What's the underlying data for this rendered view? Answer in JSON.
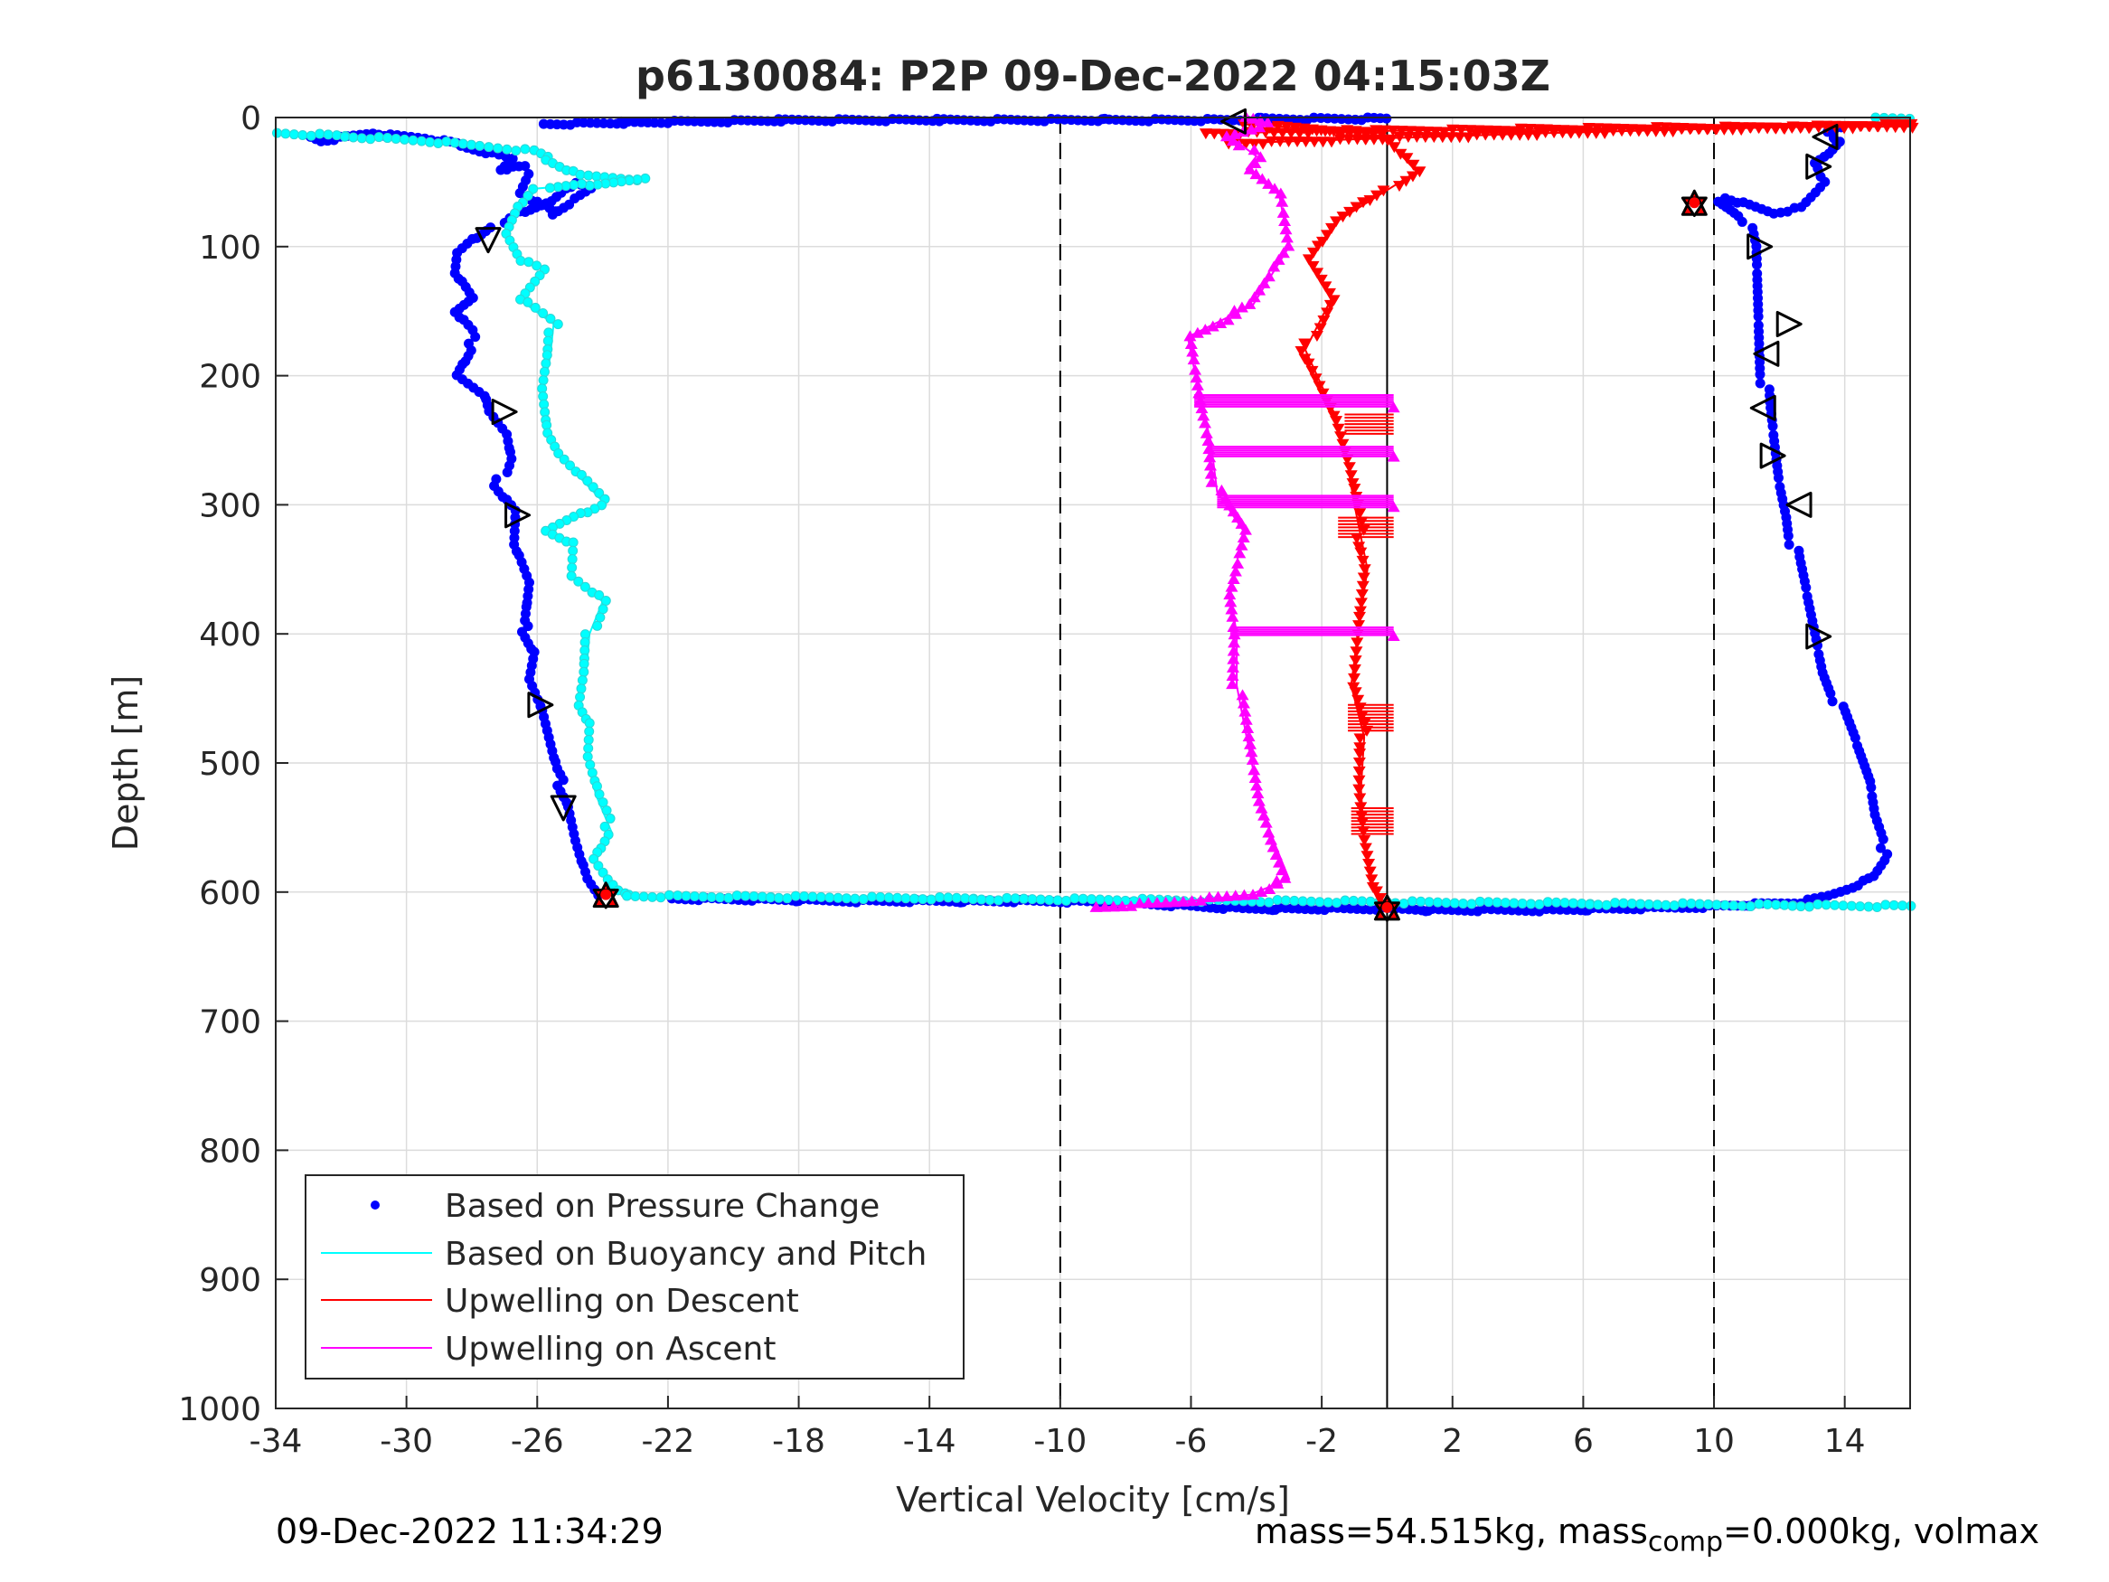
{
  "colors": {
    "pressure": "#0000ff",
    "buoyancy": "#00ffff",
    "descent": "#ff0000",
    "ascent": "#ff00ff",
    "marker_edge": "#000000",
    "marker_fill": "#ff0000"
  },
  "footer": {
    "timestamp": "09-Dec-2022 11:34:29",
    "mass_prefix": "mass=54.515kg, mass",
    "mass_sub": "comp",
    "mass_suffix": "=0.000kg, volmax"
  },
  "chart_data": {
    "type": "line",
    "title": "p6130084: P2P 09-Dec-2022 04:15:03Z",
    "xlabel": "Vertical Velocity [cm/s]",
    "ylabel": "Depth [m]",
    "xlim": [
      -34,
      16
    ],
    "ylim": [
      0,
      1000
    ],
    "y_reversed": true,
    "grid": true,
    "xticks": [
      -34,
      -30,
      -26,
      -22,
      -18,
      -14,
      -10,
      -6,
      -2,
      2,
      6,
      10,
      14
    ],
    "xtick_labels": [
      "-34",
      "-30",
      "-26",
      "-22",
      "-18",
      "-14",
      "-10",
      "-6",
      "-2",
      "2",
      "6",
      "10",
      "14"
    ],
    "yticks": [
      0,
      100,
      200,
      300,
      400,
      500,
      600,
      700,
      800,
      900,
      1000
    ],
    "ytick_labels": [
      "0",
      "100",
      "200",
      "300",
      "400",
      "500",
      "600",
      "700",
      "800",
      "900",
      "1000"
    ],
    "vlines_dashed": [
      -10,
      10
    ],
    "vline_solid": 0,
    "legend": {
      "position": "bottom-left",
      "entries": [
        "Based on Pressure Change",
        "Based on Buoyancy and Pitch",
        "Upwelling on Descent",
        "Upwelling on Ascent"
      ]
    },
    "series": [
      {
        "name": "Based on Pressure Change",
        "style": "dots",
        "segments": [
          {
            "x": [
              -32.8,
              -32.5,
              -31,
              -30.5,
              -29.5,
              -28.2,
              -27.3,
              -26.7,
              -27.1,
              -26.4,
              -26.3,
              -26.6,
              -26.1,
              -25.4,
              -24.3,
              -24.8,
              -25.6,
              -26.8,
              -27.3,
              -27.9,
              -28.4,
              -28.5,
              -28.0,
              -28.6,
              -28.1,
              -27.9,
              -28.4,
              -27.6,
              -27.5,
              -27.0,
              -26.9,
              -27.2,
              -26.6,
              -26.7,
              -26.3,
              -26.5,
              -26.0,
              -26.2,
              -25.9,
              -25.7,
              -25.5,
              -25.0,
              -24.8,
              -24.5,
              -24.2
            ],
            "y": [
              15,
              18,
              12,
              14,
              16,
              22,
              28,
              32,
              40,
              38,
              44,
              58,
              66,
              75,
              55,
              50,
              65,
              75,
              85,
              95,
              105,
              120,
              140,
              150,
              165,
              180,
              200,
              215,
              228,
              245,
              265,
              285,
              305,
              330,
              360,
              390,
              415,
              435,
              455,
              480,
              505,
              530,
              560,
              590,
              602
            ]
          },
          {
            "x": [
              -21.8,
              -16.2,
              -11.0,
              -8.1,
              -6.0,
              -4.5,
              -3.0,
              -1.5,
              0,
              1.5,
              3,
              5,
              7,
              9,
              11,
              12.7,
              13.5,
              14.2,
              14.8,
              15.1,
              15.3,
              15.0,
              14.8,
              14.4,
              13.9,
              13.4,
              13.1,
              12.8,
              12.5,
              12.3,
              12.0,
              11.8,
              11.6,
              11.5,
              11.4,
              11.3,
              11.2,
              11.0,
              10.6,
              10.2,
              10.4,
              11.8,
              12.6,
              13.0,
              13.4,
              13.2,
              13.6,
              13.9,
              13.5,
              13.9
            ],
            "y": [
              605,
              607,
              607,
              608,
              611,
              613,
              613,
              613,
              613,
              614,
              614,
              614,
              613,
              612,
              610,
              608,
              603,
              596,
              588,
              575,
              560,
              540,
              515,
              490,
              460,
              430,
              400,
              370,
              340,
              310,
              280,
              250,
              220,
              190,
              160,
              130,
              100,
              80,
              72,
              65,
              62,
              74,
              70,
              58,
              45,
              36,
              28,
              18,
              12,
              8
            ]
          },
          {
            "x": [
              -25.8,
              -17.9,
              -8.0,
              -4.6,
              -3.8,
              -1.0,
              -0.1
            ],
            "y": [
              5,
              2,
              2,
              2,
              1,
              1,
              1
            ]
          }
        ]
      },
      {
        "name": "Based on Buoyancy and Pitch",
        "style": "line-dots",
        "segments": [
          {
            "x": [
              -34,
              -31.5,
              -29.5,
              -27.8,
              -26.2,
              -25.4,
              -24.6,
              -22.7,
              -26.0,
              -26.5,
              -26.9,
              -26.5,
              -25.8,
              -26.6,
              -25.5,
              -25.6,
              -25.8,
              -25.7,
              -25.4,
              -23.9,
              -25.7,
              -24.9,
              -25.0,
              -24.0,
              -24.4,
              -24.5,
              -24.7,
              -24.4,
              -24.5,
              -24.2,
              -23.7,
              -24.2,
              -23.8,
              -23.5,
              -23.3,
              -23.2
            ],
            "y": [
              12,
              15,
              18,
              22,
              26,
              35,
              45,
              48,
              55,
              70,
              90,
              110,
              118,
              140,
              160,
              185,
              210,
              245,
              260,
              300,
              320,
              330,
              355,
              375,
              400,
              430,
              455,
              470,
              495,
              525,
              555,
              575,
              590,
              598,
              600,
              603
            ]
          },
          {
            "x": [
              -23.2,
              16
            ],
            "y": [
              603,
              611
            ]
          },
          {
            "x": [
              15.0,
              16
            ],
            "y": [
              0,
              0
            ]
          }
        ]
      },
      {
        "name": "Upwelling on Descent",
        "style": "line-triangles-down",
        "segments": [
          {
            "x": [
              -4.5,
              -0.2,
              0.9,
              -1.5,
              -2.4,
              -1.7,
              -2.5,
              -1.6,
              -1.2,
              -1.0,
              -0.6,
              -0.9,
              -1.1,
              -0.7,
              -0.8,
              -0.7,
              -0.5,
              -0.2
            ],
            "y": [
              5,
              12,
              42,
              80,
              110,
              140,
              180,
              230,
              270,
              300,
              350,
              400,
              440,
              480,
              520,
              560,
              595,
              610
            ]
          },
          {
            "x": [
              -4.8,
              5,
              16
            ],
            "y": [
              20,
              12,
              5
            ]
          },
          {
            "x": [
              -5.5,
              8,
              16
            ],
            "y": [
              12,
              8,
              7
            ]
          }
        ]
      },
      {
        "name": "Upwelling on Ascent",
        "style": "line-triangles-up",
        "segments": [
          {
            "x": [
              -8.8,
              -6.5,
              -4.2,
              -3.0,
              -3.4,
              -3.9,
              -4.3,
              -4.6,
              -4.6,
              -4.8,
              -4.4,
              -5.2,
              -5.4,
              -5.7,
              -6.1,
              -4.1,
              -3.0,
              -3.3,
              -4.3,
              -4.0,
              -4.8,
              -3.6,
              -4.3
            ],
            "y": [
              612,
              608,
              602,
              590,
              565,
              530,
              480,
              440,
              400,
              370,
              320,
              290,
              250,
              220,
              170,
              145,
              100,
              60,
              40,
              30,
              15,
              5,
              0
            ]
          }
        ]
      }
    ],
    "horizontal_bars": [
      {
        "y": [
          215,
          225
        ],
        "x": [
          -5.9,
          0.2
        ],
        "color": "ascent"
      },
      {
        "y": [
          255,
          263
        ],
        "x": [
          -5.4,
          0.2
        ],
        "color": "ascent"
      },
      {
        "y": [
          293,
          302
        ],
        "x": [
          -5.2,
          0.2
        ],
        "color": "ascent"
      },
      {
        "y": [
          395,
          402
        ],
        "x": [
          -4.8,
          0.2
        ],
        "color": "ascent"
      }
    ],
    "descent_stubs": [
      {
        "y": [
          230,
          245
        ],
        "x": [
          -1.3,
          0.2
        ]
      },
      {
        "y": [
          310,
          325
        ],
        "x": [
          -1.5,
          0.2
        ]
      },
      {
        "y": [
          455,
          475
        ],
        "x": [
          -1.2,
          0.2
        ]
      },
      {
        "y": [
          535,
          555
        ],
        "x": [
          -1.1,
          0.2
        ]
      }
    ],
    "markers": [
      {
        "shape": "tri-left",
        "x": -4.7,
        "y": 3,
        "filled": false
      },
      {
        "shape": "tri-left",
        "x": 13.4,
        "y": 15,
        "filled": false
      },
      {
        "shape": "tri-right",
        "x": 13.2,
        "y": 38,
        "filled": false
      },
      {
        "shape": "star",
        "x": 9.4,
        "y": 66,
        "filled": true
      },
      {
        "shape": "tri-down",
        "x": -27.5,
        "y": 95,
        "filled": false
      },
      {
        "shape": "tri-right",
        "x": 11.4,
        "y": 100,
        "filled": false
      },
      {
        "shape": "tri-right",
        "x": 12.3,
        "y": 160,
        "filled": false
      },
      {
        "shape": "tri-left",
        "x": 11.6,
        "y": 183,
        "filled": false
      },
      {
        "shape": "tri-right",
        "x": -27.0,
        "y": 228,
        "filled": false
      },
      {
        "shape": "tri-left",
        "x": 11.5,
        "y": 225,
        "filled": false
      },
      {
        "shape": "tri-right",
        "x": 11.8,
        "y": 262,
        "filled": false
      },
      {
        "shape": "tri-left",
        "x": 12.6,
        "y": 300,
        "filled": false
      },
      {
        "shape": "tri-right",
        "x": -26.6,
        "y": 308,
        "filled": false
      },
      {
        "shape": "tri-right",
        "x": 13.2,
        "y": 402,
        "filled": false
      },
      {
        "shape": "tri-right",
        "x": -25.9,
        "y": 455,
        "filled": false
      },
      {
        "shape": "tri-down",
        "x": -25.2,
        "y": 535,
        "filled": false
      },
      {
        "shape": "star",
        "x": -23.9,
        "y": 602,
        "filled": true
      },
      {
        "shape": "star",
        "x": 0,
        "y": 612,
        "filled": true
      }
    ]
  }
}
